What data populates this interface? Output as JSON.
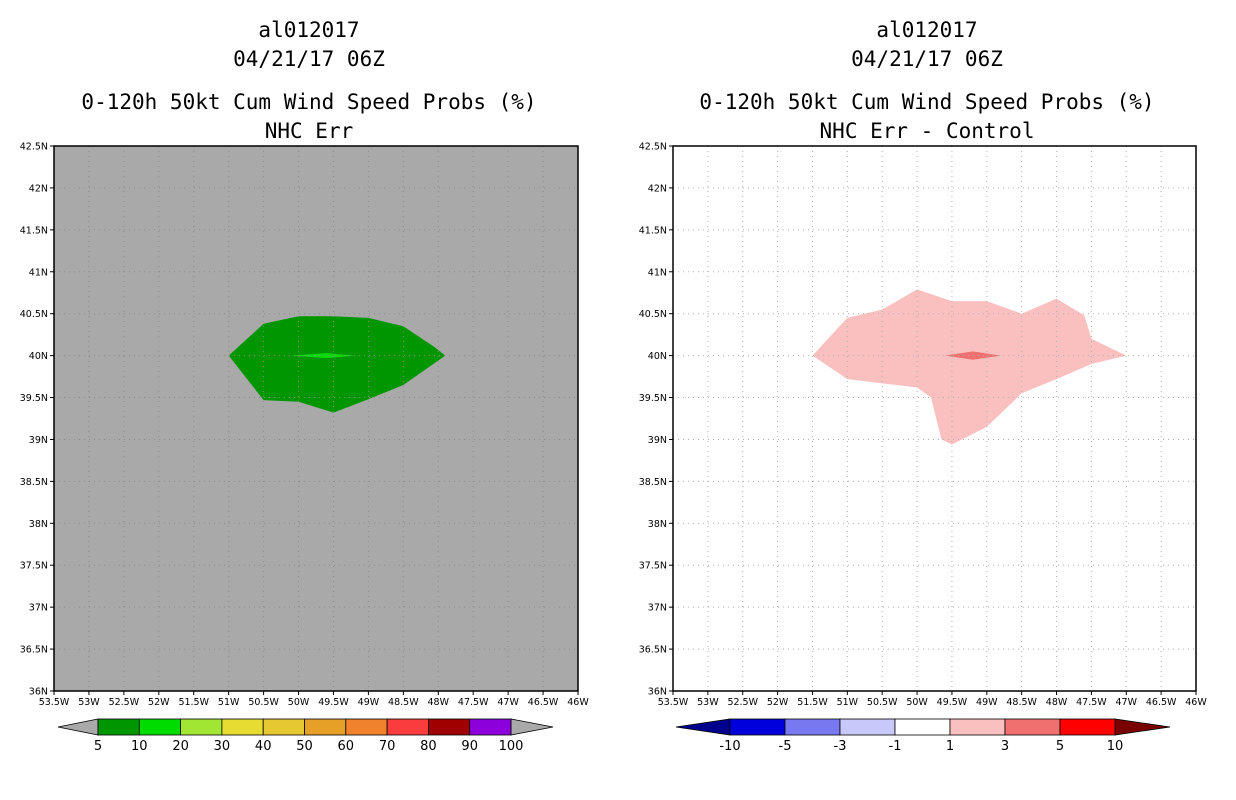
{
  "panels": [
    {
      "storm_id": "al012017",
      "datetime": "04/21/17 06Z",
      "product": "0-120h 50kt Cum Wind Speed Probs (%)",
      "subtitle": "NHC Err"
    },
    {
      "storm_id": "al012017",
      "datetime": "04/21/17 06Z",
      "product": "0-120h 50kt Cum Wind Speed Probs (%)",
      "subtitle": "NHC Err - Control"
    }
  ],
  "chart_data": [
    {
      "type": "contour-map",
      "title": "0-120h 50kt Cum Wind Speed Probs (%)",
      "subtitle": "NHC Err",
      "background": "#a9a9a9",
      "grid": true,
      "x_ticks": [
        "53.5W",
        "53W",
        "52.5W",
        "52W",
        "51.5W",
        "51W",
        "50.5W",
        "50W",
        "49.5W",
        "49W",
        "48.5W",
        "48W",
        "47.5W",
        "47W",
        "46.5W",
        "46W"
      ],
      "y_ticks": [
        "36N",
        "36.5N",
        "37N",
        "37.5N",
        "38N",
        "38.5N",
        "39N",
        "39.5N",
        "40N",
        "40.5N",
        "41N",
        "41.5N",
        "42N",
        "42.5N"
      ],
      "xlim": [
        -53.5,
        -46
      ],
      "ylim": [
        36,
        42.5
      ],
      "contours": [
        {
          "level": "5-10%",
          "color": "#009600",
          "lonlat": [
            [
              -51,
              40
            ],
            [
              -50.5,
              40.38
            ],
            [
              -50,
              40.47
            ],
            [
              -49.5,
              40.47
            ],
            [
              -49,
              40.45
            ],
            [
              -48.5,
              40.35
            ],
            [
              -48.05,
              40.1
            ],
            [
              -47.9,
              40
            ],
            [
              -48.5,
              39.65
            ],
            [
              -49,
              39.48
            ],
            [
              -49.5,
              39.32
            ],
            [
              -50,
              39.45
            ],
            [
              -50.5,
              39.47
            ],
            [
              -51,
              40
            ]
          ]
        },
        {
          "level": "10-20%",
          "color": "#00dc00",
          "lonlat": [
            [
              -50.1,
              40
            ],
            [
              -49.6,
              40.03
            ],
            [
              -49.2,
              40
            ],
            [
              -49.6,
              39.97
            ],
            [
              -50.1,
              40
            ]
          ]
        }
      ],
      "colorbar": {
        "labels": [
          "5",
          "10",
          "20",
          "30",
          "40",
          "50",
          "60",
          "70",
          "80",
          "90",
          "100"
        ],
        "colors": [
          "#009600",
          "#00dc00",
          "#a0e632",
          "#e6dc32",
          "#e6c832",
          "#e6a028",
          "#f0822d",
          "#fa3c3c",
          "#a00000",
          "#8c00dc"
        ],
        "arrow_low": "#a9a9a9",
        "arrow_high": "#a9a9a9"
      }
    },
    {
      "type": "contour-map",
      "title": "0-120h 50kt Cum Wind Speed Probs (%)",
      "subtitle": "NHC Err - Control",
      "background": "#ffffff",
      "grid": true,
      "x_ticks": [
        "53.5W",
        "53W",
        "52.5W",
        "52W",
        "51.5W",
        "51W",
        "50.5W",
        "50W",
        "49.5W",
        "49W",
        "48.5W",
        "48W",
        "47.5W",
        "47W",
        "46.5W",
        "46W"
      ],
      "y_ticks": [
        "36N",
        "36.5N",
        "37N",
        "37.5N",
        "38N",
        "38.5N",
        "39N",
        "39.5N",
        "40N",
        "40.5N",
        "41N",
        "41.5N",
        "42N",
        "42.5N"
      ],
      "xlim": [
        -53.5,
        -46
      ],
      "ylim": [
        36,
        42.5
      ],
      "contours": [
        {
          "level": "1-3",
          "color": "#fac0c0",
          "lonlat": [
            [
              -51.5,
              40
            ],
            [
              -51,
              40.45
            ],
            [
              -50.5,
              40.55
            ],
            [
              -50,
              40.79
            ],
            [
              -49.5,
              40.65
            ],
            [
              -49,
              40.65
            ],
            [
              -48.5,
              40.5
            ],
            [
              -48,
              40.68
            ],
            [
              -47.6,
              40.48
            ],
            [
              -47.5,
              40.2
            ],
            [
              -47,
              40
            ],
            [
              -47.5,
              39.9
            ],
            [
              -48,
              39.72
            ],
            [
              -48.5,
              39.55
            ],
            [
              -49,
              39.15
            ],
            [
              -49.5,
              38.94
            ],
            [
              -49.65,
              39
            ],
            [
              -49.8,
              39.5
            ],
            [
              -50,
              39.62
            ],
            [
              -51,
              39.72
            ],
            [
              -51.5,
              40
            ]
          ]
        },
        {
          "level": "3-5",
          "color": "#f07070",
          "lonlat": [
            [
              -49.6,
              40
            ],
            [
              -49.2,
              40.05
            ],
            [
              -48.8,
              40
            ],
            [
              -49.2,
              39.95
            ],
            [
              -49.6,
              40
            ]
          ]
        }
      ],
      "colorbar": {
        "labels": [
          "-10",
          "-5",
          "-3",
          "-1",
          "1",
          "3",
          "5",
          "10"
        ],
        "colors": [
          "#0000dc",
          "#7878f0",
          "#c8c8fa",
          "#ffffff",
          "#fac0c0",
          "#f07070",
          "#ff0000"
        ],
        "arrow_low": "#00008c",
        "arrow_high": "#780000"
      }
    }
  ]
}
